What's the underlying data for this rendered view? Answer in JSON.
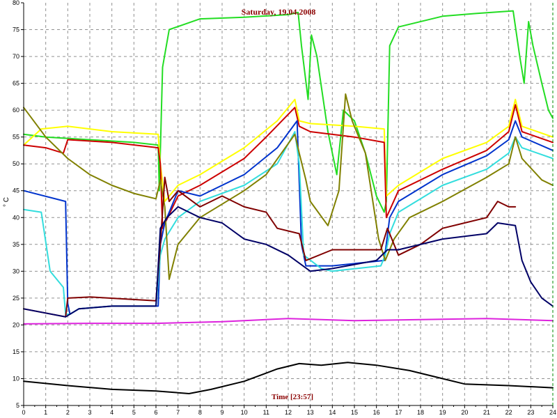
{
  "chart_data": {
    "type": "line",
    "title": "Saturday, 19.04.2008",
    "xlabel": "Time [23:57]",
    "ylabel": "° C",
    "xlim": [
      0,
      24
    ],
    "ylim": [
      5,
      80
    ],
    "xticks": [
      0,
      1,
      2,
      3,
      4,
      5,
      6,
      7,
      8,
      9,
      10,
      11,
      12,
      13,
      14,
      15,
      16,
      17,
      18,
      19,
      20,
      21,
      22,
      23,
      24
    ],
    "yticks": [
      5,
      10,
      15,
      20,
      25,
      30,
      35,
      40,
      45,
      50,
      55,
      60,
      65,
      70,
      75,
      80
    ],
    "grid": true,
    "series": [
      {
        "color": "#22dd22",
        "points": [
          [
            0,
            55.5
          ],
          [
            1,
            55
          ],
          [
            3,
            54.5
          ],
          [
            5,
            54
          ],
          [
            6.1,
            53.5
          ],
          [
            6.15,
            45
          ],
          [
            6.3,
            68
          ],
          [
            6.6,
            75
          ],
          [
            8,
            77
          ],
          [
            10,
            77.3
          ],
          [
            12,
            77.8
          ],
          [
            12.45,
            78.2
          ],
          [
            12.6,
            72
          ],
          [
            12.9,
            62
          ],
          [
            13.05,
            74
          ],
          [
            13.3,
            70
          ],
          [
            13.8,
            56
          ],
          [
            14.2,
            48
          ],
          [
            14.5,
            60
          ],
          [
            15,
            58
          ],
          [
            15.5,
            52
          ],
          [
            16,
            44
          ],
          [
            16.35,
            41
          ],
          [
            16.45,
            43
          ],
          [
            16.6,
            72
          ],
          [
            17,
            75.5
          ],
          [
            19,
            77.5
          ],
          [
            20.5,
            78
          ],
          [
            22.2,
            78.5
          ],
          [
            22.5,
            70
          ],
          [
            22.7,
            65
          ],
          [
            22.9,
            76.5
          ],
          [
            23.1,
            72
          ],
          [
            23.5,
            65
          ],
          [
            23.8,
            60
          ],
          [
            24,
            58.5
          ]
        ]
      },
      {
        "color": "#ffff00",
        "points": [
          [
            0,
            53.5
          ],
          [
            0.8,
            56.5
          ],
          [
            2,
            57
          ],
          [
            4,
            56
          ],
          [
            6.1,
            55.5
          ],
          [
            6.2,
            50
          ],
          [
            6.4,
            43
          ],
          [
            7,
            46
          ],
          [
            8,
            48
          ],
          [
            10,
            53
          ],
          [
            11.5,
            58
          ],
          [
            12.3,
            62
          ],
          [
            12.5,
            58
          ],
          [
            13,
            57.5
          ],
          [
            15,
            57
          ],
          [
            16.35,
            56.5
          ],
          [
            16.45,
            44
          ],
          [
            17,
            46
          ],
          [
            19,
            51
          ],
          [
            21,
            54
          ],
          [
            22,
            57
          ],
          [
            22.3,
            62
          ],
          [
            22.6,
            57
          ],
          [
            24,
            55
          ]
        ]
      },
      {
        "color": "#cc0000",
        "points": [
          [
            0,
            53.5
          ],
          [
            1,
            53
          ],
          [
            1.8,
            52
          ],
          [
            2,
            54.5
          ],
          [
            4,
            54
          ],
          [
            6.1,
            53
          ],
          [
            6.2,
            50
          ],
          [
            6.3,
            38
          ],
          [
            7,
            44
          ],
          [
            8,
            46
          ],
          [
            10,
            51
          ],
          [
            11,
            55
          ],
          [
            12.3,
            60.5
          ],
          [
            12.5,
            57
          ],
          [
            13,
            56
          ],
          [
            15,
            55
          ],
          [
            16.35,
            54
          ],
          [
            16.45,
            40
          ],
          [
            17,
            45
          ],
          [
            19,
            49
          ],
          [
            21,
            52.5
          ],
          [
            22,
            56
          ],
          [
            22.3,
            61
          ],
          [
            22.6,
            56
          ],
          [
            24,
            54
          ]
        ]
      },
      {
        "color": "#0033cc",
        "points": [
          [
            0,
            45
          ],
          [
            1.9,
            43
          ],
          [
            2,
            24
          ],
          [
            2.1,
            22
          ],
          [
            2.5,
            23
          ],
          [
            4,
            23.5
          ],
          [
            6.1,
            23.5
          ],
          [
            6.2,
            35
          ],
          [
            6.4,
            39
          ],
          [
            7,
            45
          ],
          [
            8,
            44
          ],
          [
            10,
            48
          ],
          [
            11.5,
            53
          ],
          [
            12.4,
            58
          ],
          [
            12.6,
            35
          ],
          [
            12.8,
            31
          ],
          [
            14,
            31
          ],
          [
            16.35,
            32
          ],
          [
            16.6,
            40
          ],
          [
            17,
            43
          ],
          [
            19,
            48
          ],
          [
            21,
            51.5
          ],
          [
            22,
            54.5
          ],
          [
            22.3,
            58
          ],
          [
            22.6,
            55
          ],
          [
            24,
            52.5
          ]
        ]
      },
      {
        "color": "#33dddd",
        "points": [
          [
            0,
            41.5
          ],
          [
            0.8,
            41
          ],
          [
            1.2,
            30
          ],
          [
            1.8,
            27
          ],
          [
            1.9,
            22
          ],
          [
            2.1,
            22
          ],
          [
            2.5,
            23
          ],
          [
            4,
            23.5
          ],
          [
            6,
            23.5
          ],
          [
            6.2,
            33
          ],
          [
            6.4,
            36
          ],
          [
            7,
            40
          ],
          [
            8,
            43
          ],
          [
            10,
            46
          ],
          [
            11.5,
            50
          ],
          [
            12.3,
            56
          ],
          [
            12.5,
            50
          ],
          [
            12.7,
            33
          ],
          [
            13.5,
            30.5
          ],
          [
            14,
            30
          ],
          [
            16.2,
            31
          ],
          [
            16.4,
            33
          ],
          [
            16.6,
            37
          ],
          [
            17,
            41
          ],
          [
            19,
            46
          ],
          [
            21,
            49
          ],
          [
            22,
            52
          ],
          [
            22.3,
            55
          ],
          [
            22.6,
            53
          ],
          [
            24,
            51
          ]
        ]
      },
      {
        "color": "#808000",
        "points": [
          [
            0,
            60.5
          ],
          [
            1,
            55
          ],
          [
            2,
            51
          ],
          [
            3,
            48
          ],
          [
            4,
            46
          ],
          [
            5,
            44.5
          ],
          [
            6,
            43.5
          ],
          [
            6.2,
            47
          ],
          [
            6.4,
            42
          ],
          [
            6.6,
            28.5
          ],
          [
            7,
            35
          ],
          [
            8,
            40
          ],
          [
            10,
            45
          ],
          [
            11,
            48
          ],
          [
            12.3,
            55.5
          ],
          [
            12.5,
            52
          ],
          [
            12.8,
            47
          ],
          [
            13,
            43
          ],
          [
            13.8,
            38.5
          ],
          [
            14.3,
            45
          ],
          [
            14.6,
            63
          ],
          [
            14.9,
            58
          ],
          [
            15.5,
            52
          ],
          [
            16.1,
            36
          ],
          [
            16.4,
            32
          ],
          [
            16.8,
            36
          ],
          [
            17.5,
            40
          ],
          [
            19,
            43
          ],
          [
            21,
            47.5
          ],
          [
            22,
            50
          ],
          [
            22.3,
            55
          ],
          [
            22.6,
            51
          ],
          [
            23.5,
            47
          ],
          [
            24,
            46
          ]
        ]
      },
      {
        "color": "#800000",
        "points": [
          [
            0,
            23
          ],
          [
            1.9,
            21.5
          ],
          [
            2,
            25
          ],
          [
            3,
            25.2
          ],
          [
            6,
            24.5
          ],
          [
            6.2,
            35
          ],
          [
            6.4,
            47.5
          ],
          [
            6.6,
            43
          ],
          [
            7,
            45
          ],
          [
            8,
            42
          ],
          [
            9,
            44
          ],
          [
            10,
            42
          ],
          [
            11,
            41
          ],
          [
            11.5,
            38
          ],
          [
            12.5,
            37
          ],
          [
            12.8,
            32
          ],
          [
            14,
            34
          ],
          [
            16.2,
            34
          ],
          [
            16.5,
            38
          ],
          [
            17,
            33
          ],
          [
            18,
            35
          ],
          [
            19,
            38
          ],
          [
            20,
            39
          ],
          [
            21,
            40
          ],
          [
            21.5,
            43
          ],
          [
            22,
            42
          ],
          [
            22.3,
            42
          ]
        ]
      },
      {
        "color": "#000066",
        "points": [
          [
            0,
            23
          ],
          [
            1.9,
            21.5
          ],
          [
            2.5,
            23
          ],
          [
            4,
            23.5
          ],
          [
            6,
            23.5
          ],
          [
            6.2,
            38
          ],
          [
            6.5,
            40
          ],
          [
            7,
            42
          ],
          [
            8,
            40
          ],
          [
            9,
            39
          ],
          [
            10,
            36
          ],
          [
            11,
            35
          ],
          [
            12,
            33
          ],
          [
            13,
            30
          ],
          [
            14,
            30.5
          ],
          [
            16,
            32
          ],
          [
            16.5,
            34
          ],
          [
            17,
            34
          ],
          [
            19,
            36
          ],
          [
            21,
            37
          ],
          [
            21.5,
            39
          ],
          [
            22.3,
            38.5
          ],
          [
            22.6,
            32
          ],
          [
            23,
            28
          ],
          [
            23.5,
            25
          ],
          [
            24,
            23.5
          ]
        ]
      },
      {
        "color": "#dd22dd",
        "points": [
          [
            0,
            20.2
          ],
          [
            3,
            20.3
          ],
          [
            6,
            20.3
          ],
          [
            9,
            20.6
          ],
          [
            12,
            21.2
          ],
          [
            15,
            20.8
          ],
          [
            18,
            21
          ],
          [
            21,
            21.2
          ],
          [
            24,
            20.8
          ]
        ]
      },
      {
        "color": "#000000",
        "points": [
          [
            0,
            9.5
          ],
          [
            2,
            8.7
          ],
          [
            4,
            8
          ],
          [
            6,
            7.7
          ],
          [
            7.5,
            7.2
          ],
          [
            8.5,
            8
          ],
          [
            10,
            9.5
          ],
          [
            11.5,
            11.8
          ],
          [
            12.5,
            12.8
          ],
          [
            13.5,
            12.5
          ],
          [
            14.7,
            13
          ],
          [
            16,
            12.5
          ],
          [
            17.5,
            11.5
          ],
          [
            19,
            10
          ],
          [
            20,
            9
          ],
          [
            22,
            8.7
          ],
          [
            24,
            8.3
          ]
        ]
      }
    ]
  }
}
